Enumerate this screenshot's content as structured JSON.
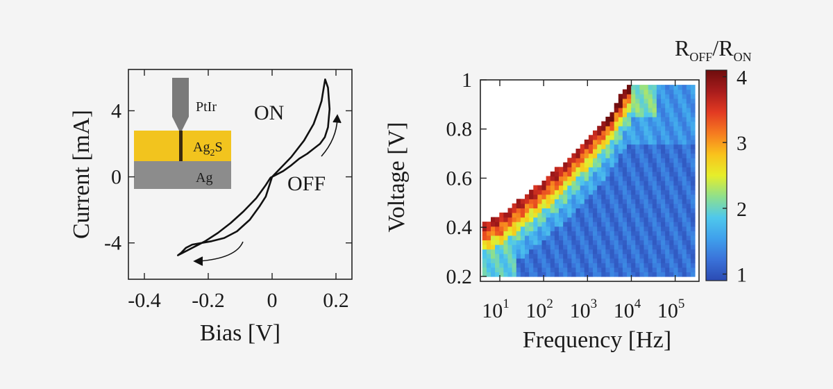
{
  "chart_data": [
    {
      "type": "line",
      "xlabel": "Bias [V]",
      "ylabel": "Current [mA]",
      "xlim": [
        -0.45,
        0.25
      ],
      "ylim": [
        -6.2,
        6.5
      ],
      "xticks": [
        -0.4,
        -0.2,
        0,
        0.2
      ],
      "xtick_labels": [
        "-0.4",
        "-0.2",
        "0",
        "0.2"
      ],
      "yticks": [
        -4,
        0,
        4
      ],
      "ytick_labels": [
        "-4",
        "0",
        "4"
      ],
      "annotations": {
        "on": "ON",
        "off": "OFF"
      },
      "inset": {
        "tip_label": "PtIr",
        "layer_label": "Ag",
        "layer_sub": "2",
        "layer_tail": "S",
        "substrate_label": "Ag",
        "colors": {
          "tip": "#7a7a7a",
          "ag2s": "#f2c41e",
          "ag": "#8c8c8c"
        }
      },
      "series": [
        {
          "x": [
            0,
            0.06,
            0.1,
            0.13,
            0.145,
            0.155,
            0.16,
            0.166,
            0.175,
            0.18,
            0.175,
            0.165,
            0.15,
            0.13,
            0.11,
            0.085,
            0.06,
            0.035,
            0.01,
            -0.005,
            -0.02,
            -0.05,
            -0.09,
            -0.13,
            -0.17,
            -0.21,
            -0.25,
            -0.28,
            -0.295,
            -0.285,
            -0.27,
            -0.25,
            -0.22,
            -0.19,
            -0.15,
            -0.11,
            -0.07,
            -0.04,
            -0.02,
            -0.01,
            0
          ],
          "y": [
            0,
            1.2,
            2.2,
            3.2,
            4.0,
            4.6,
            5.2,
            5.9,
            5.4,
            4.1,
            3.0,
            2.4,
            2.0,
            1.7,
            1.4,
            1.1,
            0.7,
            0.35,
            0.1,
            -0.05,
            -0.5,
            -1.3,
            -2.1,
            -2.8,
            -3.4,
            -3.9,
            -4.3,
            -4.6,
            -4.75,
            -4.6,
            -4.3,
            -4.1,
            -4.0,
            -3.9,
            -3.7,
            -3.3,
            -2.6,
            -1.8,
            -1.2,
            -0.6,
            0
          ]
        }
      ]
    },
    {
      "type": "heatmap",
      "xlabel": "Frequency [Hz]",
      "ylabel": "Voltage [V]",
      "x_scale": "log",
      "xlim": [
        3.6,
        350000
      ],
      "ylim": [
        0.18,
        1.0
      ],
      "xticks": [
        10,
        100,
        1000,
        10000,
        100000
      ],
      "xtick_bases": [
        "10",
        "10",
        "10",
        "10",
        "10"
      ],
      "xtick_exps": [
        "1",
        "2",
        "3",
        "4",
        "5"
      ],
      "yticks": [
        0.2,
        0.4,
        0.6,
        0.8,
        1.0
      ],
      "ytick_labels": [
        "0.2",
        "0.4",
        "0.6",
        "0.8",
        "1"
      ],
      "colorbar": {
        "title_main": "R",
        "title_sub1": "OFF",
        "title_mid": "/R",
        "title_sub2": "ON",
        "range": [
          0.9,
          4.1
        ],
        "ticks": [
          1,
          2,
          3,
          4
        ],
        "tick_labels": [
          "1",
          "2",
          "3",
          "4"
        ],
        "colormap": [
          "#2b4bb3",
          "#3a72d9",
          "#3fa0ec",
          "#4fc8ec",
          "#8fe08c",
          "#e6ee2a",
          "#f9c21c",
          "#f67b20",
          "#e23a22",
          "#a81c1c",
          "#6e0d0d"
        ]
      },
      "boundary": {
        "description_free_params": true,
        "log_f": [
          0.6,
          1.0,
          1.5,
          2.0,
          2.5,
          3.0,
          3.5,
          3.9,
          4.0,
          5.45
        ],
        "v_top": [
          0.42,
          0.45,
          0.52,
          0.59,
          0.67,
          0.76,
          0.86,
          0.98,
          0.98,
          0.98
        ]
      }
    }
  ]
}
